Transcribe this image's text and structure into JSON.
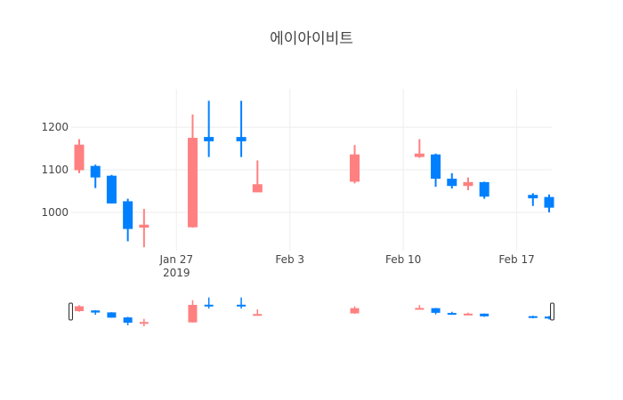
{
  "colors": {
    "increasing": "#ff8080",
    "decreasing": "#0080ff",
    "grid": "#eeeeee",
    "text": "#444444"
  },
  "chart_data": {
    "type": "candlestick",
    "title": "에이아이비트",
    "xlabel": "",
    "ylabel": "",
    "grid": true,
    "show_legend": false,
    "xlim": [
      "2019-01-21",
      "2019-02-19"
    ],
    "ylim": [
      910,
      1290
    ],
    "x_ticks": [
      {
        "date": "2019-01-27",
        "label": "Jan 27",
        "sublabel": "2019"
      },
      {
        "date": "2019-02-03",
        "label": "Feb 3",
        "sublabel": ""
      },
      {
        "date": "2019-02-10",
        "label": "Feb 10",
        "sublabel": ""
      },
      {
        "date": "2019-02-17",
        "label": "Feb 17",
        "sublabel": ""
      }
    ],
    "y_ticks": [
      {
        "value": 1000,
        "label": "1000"
      },
      {
        "value": 1100,
        "label": "1100"
      },
      {
        "value": 1200,
        "label": "1200"
      }
    ],
    "candles": [
      {
        "date": "2019-01-21",
        "open": 1100,
        "high": 1172,
        "low": 1092,
        "close": 1158
      },
      {
        "date": "2019-01-22",
        "open": 1108,
        "high": 1112,
        "low": 1057,
        "close": 1083
      },
      {
        "date": "2019-01-23",
        "open": 1085,
        "high": 1088,
        "low": 1021,
        "close": 1022
      },
      {
        "date": "2019-01-24",
        "open": 1025,
        "high": 1032,
        "low": 932,
        "close": 962
      },
      {
        "date": "2019-01-25",
        "open": 965,
        "high": 1008,
        "low": 918,
        "close": 970
      },
      {
        "date": "2019-01-28",
        "open": 966,
        "high": 1230,
        "low": 964,
        "close": 1174
      },
      {
        "date": "2019-01-29",
        "open": 1176,
        "high": 1262,
        "low": 1130,
        "close": 1168
      },
      {
        "date": "2019-01-31",
        "open": 1176,
        "high": 1262,
        "low": 1130,
        "close": 1168
      },
      {
        "date": "2019-02-01",
        "open": 1048,
        "high": 1122,
        "low": 1048,
        "close": 1065
      },
      {
        "date": "2019-02-07",
        "open": 1073,
        "high": 1158,
        "low": 1068,
        "close": 1135
      },
      {
        "date": "2019-02-11",
        "open": 1131,
        "high": 1172,
        "low": 1128,
        "close": 1137
      },
      {
        "date": "2019-02-12",
        "open": 1135,
        "high": 1138,
        "low": 1060,
        "close": 1080
      },
      {
        "date": "2019-02-13",
        "open": 1078,
        "high": 1092,
        "low": 1056,
        "close": 1063
      },
      {
        "date": "2019-02-14",
        "open": 1063,
        "high": 1082,
        "low": 1052,
        "close": 1070
      },
      {
        "date": "2019-02-15",
        "open": 1070,
        "high": 1072,
        "low": 1032,
        "close": 1038
      },
      {
        "date": "2019-02-18",
        "open": 1040,
        "high": 1045,
        "low": 1015,
        "close": 1034
      },
      {
        "date": "2019-02-19",
        "open": 1035,
        "high": 1042,
        "low": 1000,
        "close": 1012
      }
    ],
    "rangeslider": {
      "visible": true,
      "handles": [
        "left-handle",
        "right-handle"
      ]
    }
  }
}
